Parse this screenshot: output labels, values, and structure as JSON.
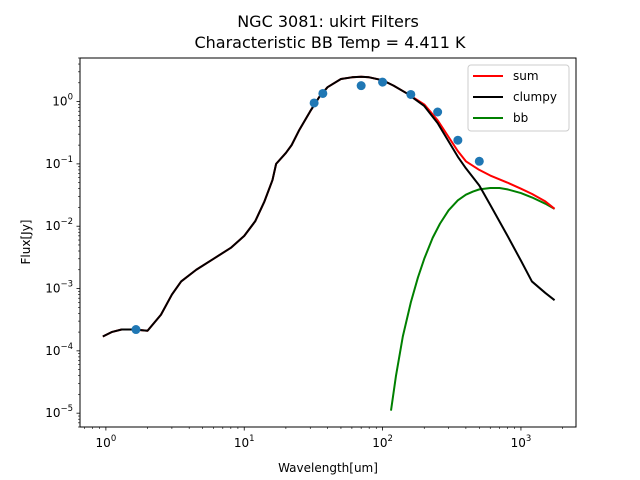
{
  "chart_data": {
    "type": "line",
    "title": "NGC 3081: ukirt Filters",
    "subtitle": "Characteristic BB Temp = 4.411 K",
    "xlabel": "Wavelength[um]",
    "ylabel": "Flux[Jy]",
    "xscale": "log",
    "yscale": "log",
    "xlim": [
      0.65,
      2500
    ],
    "ylim": [
      6e-06,
      5
    ],
    "grid": false,
    "legend_position": "top-right",
    "x_ticks": [
      {
        "value": 1,
        "base": "10",
        "exp": "0"
      },
      {
        "value": 10,
        "base": "10",
        "exp": "1"
      },
      {
        "value": 100,
        "base": "10",
        "exp": "2"
      },
      {
        "value": 1000,
        "base": "10",
        "exp": "3"
      }
    ],
    "y_ticks": [
      {
        "value": 1e-05,
        "base": "10",
        "exp": "−5"
      },
      {
        "value": 0.0001,
        "base": "10",
        "exp": "−4"
      },
      {
        "value": 0.001,
        "base": "10",
        "exp": "−3"
      },
      {
        "value": 0.01,
        "base": "10",
        "exp": "−2"
      },
      {
        "value": 0.1,
        "base": "10",
        "exp": "−1"
      },
      {
        "value": 1,
        "base": "10",
        "exp": "0"
      }
    ],
    "series": [
      {
        "name": "sum",
        "color": "#ff0000",
        "x": [
          0.95,
          1.1,
          1.3,
          1.6,
          2.0,
          2.5,
          3.0,
          3.5,
          4.5,
          6.0,
          8.0,
          10,
          12,
          14,
          16,
          17,
          20,
          22,
          25,
          30,
          35,
          40,
          50,
          60,
          70,
          80,
          100,
          120,
          150,
          200,
          250,
          300,
          350,
          400,
          500,
          600,
          800,
          1000,
          1200,
          1500,
          1750
        ],
        "y": [
          0.00017,
          0.0002,
          0.00022,
          0.00022,
          0.00021,
          0.00038,
          0.0008,
          0.0013,
          0.002,
          0.003,
          0.0045,
          0.007,
          0.012,
          0.025,
          0.055,
          0.1,
          0.15,
          0.2,
          0.35,
          0.7,
          1.2,
          1.7,
          2.3,
          2.45,
          2.5,
          2.45,
          2.2,
          1.8,
          1.35,
          0.9,
          0.5,
          0.27,
          0.16,
          0.11,
          0.08,
          0.065,
          0.05,
          0.04,
          0.033,
          0.025,
          0.019
        ]
      },
      {
        "name": "clumpy",
        "color": "#000000",
        "x": [
          0.95,
          1.1,
          1.3,
          1.6,
          2.0,
          2.5,
          3.0,
          3.5,
          4.5,
          6.0,
          8.0,
          10,
          12,
          14,
          16,
          17,
          20,
          22,
          25,
          30,
          35,
          40,
          50,
          60,
          70,
          80,
          100,
          120,
          150,
          200,
          250,
          300,
          350,
          400,
          500,
          600,
          800,
          1000,
          1200,
          1500,
          1750
        ],
        "y": [
          0.00017,
          0.0002,
          0.00022,
          0.00022,
          0.00021,
          0.00038,
          0.0008,
          0.0013,
          0.002,
          0.003,
          0.0045,
          0.007,
          0.012,
          0.025,
          0.055,
          0.1,
          0.15,
          0.2,
          0.35,
          0.7,
          1.2,
          1.7,
          2.3,
          2.45,
          2.5,
          2.45,
          2.2,
          1.8,
          1.35,
          0.85,
          0.45,
          0.23,
          0.13,
          0.085,
          0.045,
          0.022,
          0.007,
          0.0028,
          0.0013,
          0.00085,
          0.00065
        ]
      },
      {
        "name": "bb",
        "color": "#008000",
        "x": [
          115,
          125,
          140,
          160,
          180,
          200,
          230,
          260,
          300,
          350,
          400,
          450,
          500,
          600,
          700,
          800,
          1000,
          1200,
          1500,
          1750
        ],
        "y": [
          1.1e-05,
          4e-05,
          0.00017,
          0.0006,
          0.0015,
          0.003,
          0.0065,
          0.011,
          0.018,
          0.026,
          0.032,
          0.036,
          0.039,
          0.041,
          0.041,
          0.039,
          0.034,
          0.029,
          0.023,
          0.019
        ]
      }
    ],
    "points": {
      "color": "#1f77b4",
      "x": [
        1.65,
        32,
        37,
        70,
        100,
        160,
        250,
        350,
        500
      ],
      "y": [
        0.00022,
        0.95,
        1.35,
        1.8,
        2.05,
        1.3,
        0.68,
        0.24,
        0.11
      ]
    }
  }
}
